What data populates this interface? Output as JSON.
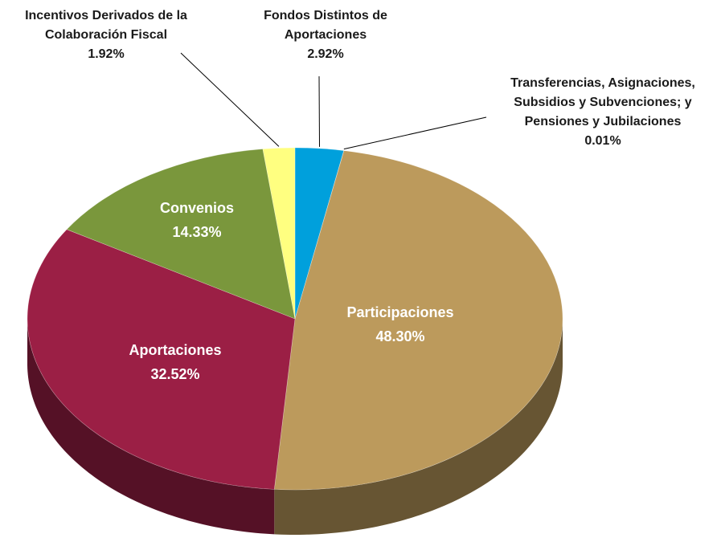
{
  "chart_data": {
    "type": "pie3d",
    "categories": [
      "Fondos Distintos de Aportaciones",
      "Transferencias, Asignaciones, Subsidios y Subvenciones; y Pensiones y Jubilaciones",
      "Participaciones",
      "Aportaciones",
      "Convenios",
      "Incentivos Derivados de la Colaboración Fiscal"
    ],
    "values": [
      2.92,
      0.01,
      48.3,
      32.52,
      14.33,
      1.92
    ],
    "value_labels": [
      "2.92%",
      "0.01%",
      "48.30%",
      "32.52%",
      "14.33%",
      "1.92%"
    ],
    "colors": [
      "#00a0dc",
      "#e07b39",
      "#bc9a5c",
      "#9b1f45",
      "#7a973c",
      "#ffff80"
    ]
  }
}
